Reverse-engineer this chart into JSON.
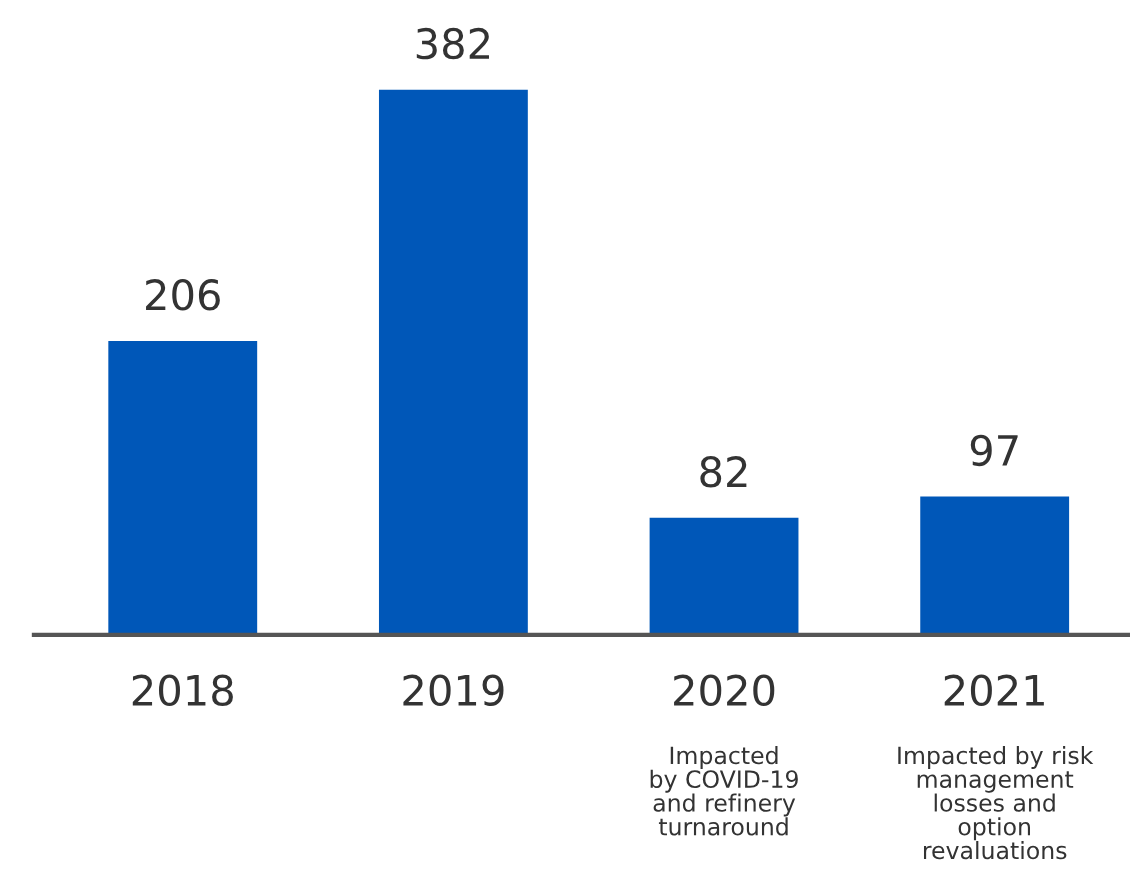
{
  "chart_data": {
    "type": "bar",
    "categories": [
      "2018",
      "2019",
      "2020",
      "2021"
    ],
    "values": [
      206,
      382,
      82,
      97
    ],
    "color": "#0057b8",
    "data_labels": true,
    "grid": false,
    "legend": false,
    "annotations": [
      "Impacted\nby COVID-19\nand refinery\nturnaround",
      "Impacted by risk\nmanagement\nlosses and\noption\nrevaluations"
    ]
  }
}
